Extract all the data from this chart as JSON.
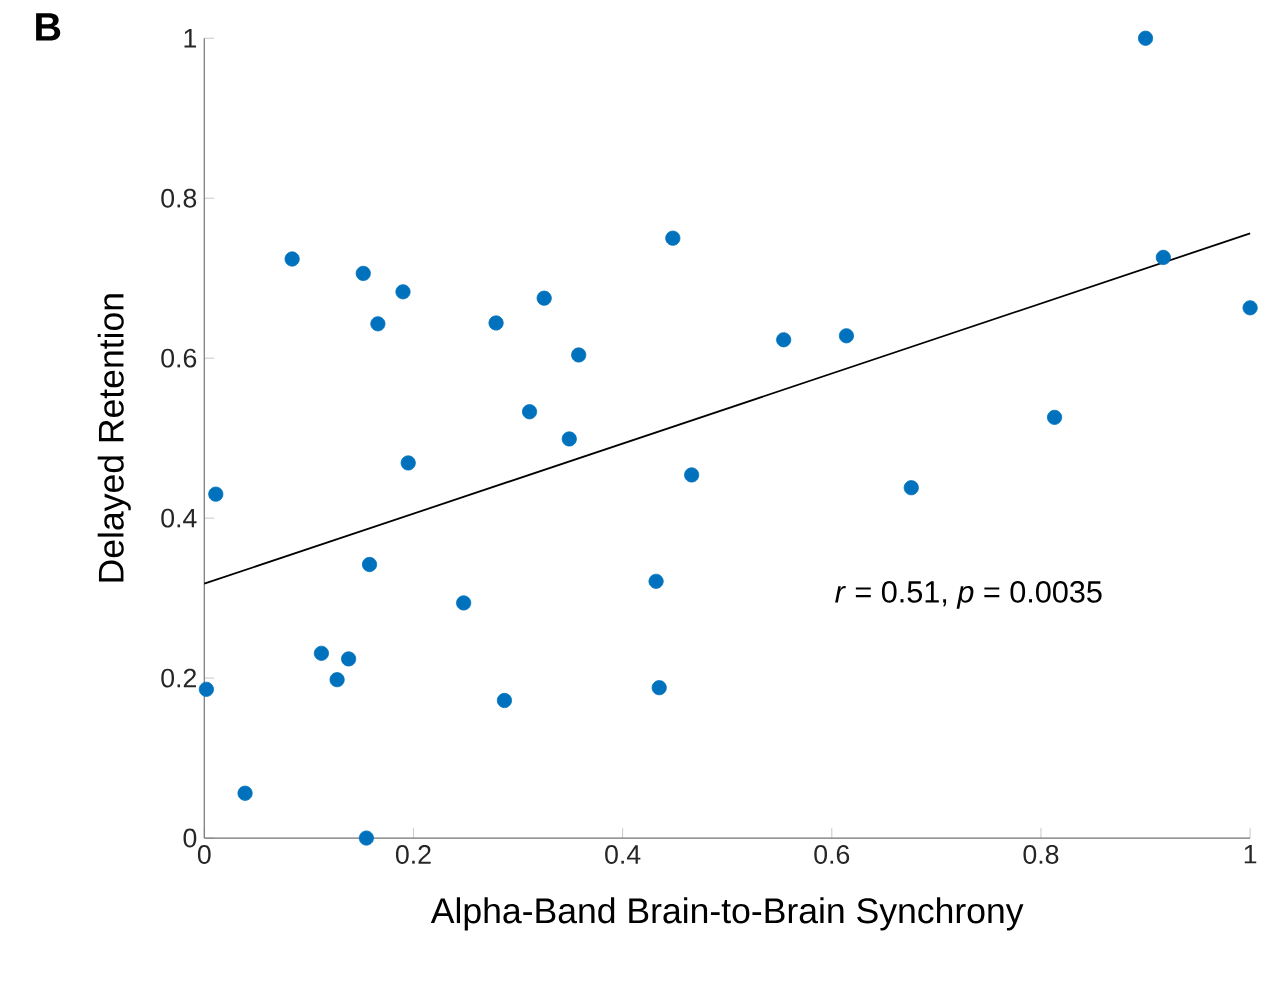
{
  "chart_data": {
    "type": "scatter",
    "xlabel": "Alpha-Band Brain-to-Brain Synchrony",
    "ylabel": "Delayed Retention",
    "annotations": [
      "**B**",
      "*r* = 0.51, *p* = 0.0035"
    ],
    "series": [
      {
        "color": "#0072bd",
        "marker": "circle",
        "x": [
          0.084,
          0.152,
          0.166,
          0.19,
          0.279,
          0.325,
          0.358,
          0.311,
          0.349,
          0.195,
          0.448,
          0.466,
          0.011,
          0.9,
          0.917,
          1.0,
          0.554,
          0.614,
          0.813,
          0.676,
          0.002,
          0.039,
          0.112,
          0.127,
          0.138,
          0.158,
          0.155,
          0.248,
          0.287,
          0.432,
          0.435
        ],
        "values": [
          0.724,
          0.706,
          0.643,
          0.683,
          0.644,
          0.675,
          0.604,
          0.533,
          0.499,
          0.469,
          0.75,
          0.454,
          0.43,
          1.0,
          0.726,
          0.663,
          0.623,
          0.628,
          0.526,
          0.438,
          0.186,
          0.056,
          0.231,
          0.198,
          0.224,
          0.342,
          0.0,
          0.294,
          0.172,
          0.321,
          0.188
        ]
      },
      {
        "type": "line",
        "color": "#000000",
        "x": [
          0,
          1
        ],
        "values": [
          0.318,
          0.756
        ]
      }
    ],
    "xlim": [
      0,
      1
    ],
    "ylim": [
      0,
      1
    ],
    "xticks": [
      0,
      {
        "value": 0.2,
        "label": "0.2"
      },
      {
        "value": 0.4,
        "label": "0.4"
      },
      {
        "value": 0.6,
        "label": "0.6"
      },
      {
        "value": 0.8,
        "label": "0.8"
      },
      1
    ],
    "yticks": [
      0,
      {
        "value": 0.2,
        "label": "0.2"
      },
      {
        "value": 0.4,
        "label": "0.4"
      },
      {
        "value": 0.6,
        "label": "0.6"
      },
      {
        "value": 0.8,
        "label": "0.8"
      },
      1
    ],
    "grid": false
  }
}
